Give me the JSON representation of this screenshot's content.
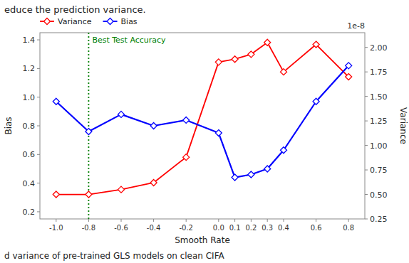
{
  "chart_data": {
    "type": "line",
    "title": "educe the prediction variance.",
    "xlabel": "Smooth Rate",
    "ylabel": "Bias",
    "y2label": "Variance",
    "x": [
      -1.0,
      -0.8,
      -0.6,
      -0.4,
      -0.2,
      0.0,
      0.1,
      0.2,
      0.3,
      0.4,
      0.6,
      0.8
    ],
    "series": [
      {
        "name": "Variance",
        "color": "#ff0000",
        "axis": "y2",
        "marker": "diamond",
        "line_style": "solid",
        "values": [
          0.5,
          0.5,
          0.55,
          0.62,
          0.88,
          1.85,
          1.88,
          1.93,
          2.05,
          1.75,
          2.03,
          1.7
        ]
      },
      {
        "name": "Bias",
        "color": "#0000ff",
        "axis": "y",
        "marker": "diamond",
        "line_style": "solid",
        "values": [
          0.97,
          0.76,
          0.88,
          0.8,
          0.84,
          0.75,
          0.44,
          0.46,
          0.5,
          0.63,
          0.97,
          1.22
        ]
      }
    ],
    "xlim": [
      -1.1,
      0.9
    ],
    "xticks": [
      {
        "value": -1.0,
        "label": "-1.0"
      },
      -0.8,
      -0.6,
      -0.4,
      -0.2,
      {
        "value": 0.0,
        "label": "0.0"
      },
      0.1,
      0.2,
      0.3,
      0.4,
      0.6,
      0.8
    ],
    "ylim": [
      0.15,
      1.45
    ],
    "yticks": [
      0.2,
      0.4,
      0.6,
      0.8,
      {
        "value": 1.0,
        "label": "1.0"
      },
      1.2,
      1.4
    ],
    "y2lim": [
      0.25,
      2.15
    ],
    "y2ticks": [
      0.25,
      {
        "value": 0.5,
        "label": "0.50"
      },
      0.75,
      {
        "value": 1.0,
        "label": "1.00"
      },
      1.25,
      {
        "value": 1.5,
        "label": "1.50"
      },
      1.75,
      {
        "value": 2.0,
        "label": "2.00"
      }
    ],
    "annotations": [
      {
        "type": "vline",
        "x": -0.8,
        "text": "Best Test Accuracy",
        "color": "#008000",
        "line_style": "dotted"
      },
      {
        "text": "1e-8",
        "axis": "y2"
      },
      {
        "text": "d variance of pre-trained GLS models on clean CIFA"
      }
    ],
    "legend": "upper left",
    "grid": false
  }
}
